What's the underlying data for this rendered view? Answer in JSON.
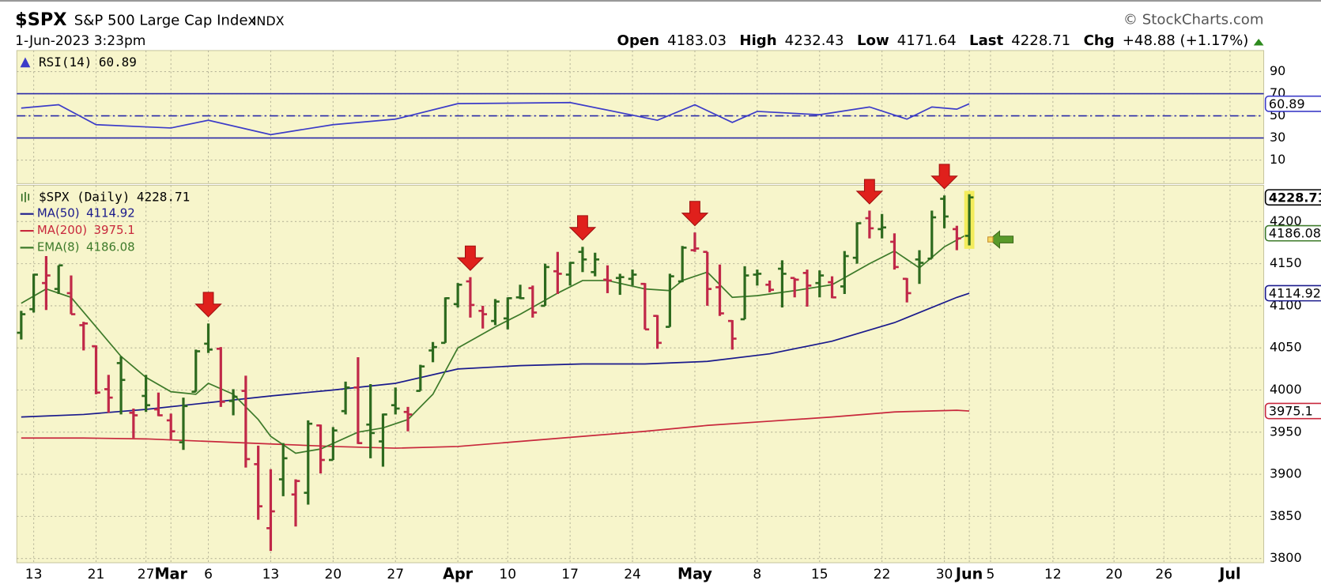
{
  "header": {
    "symbol": "$SPX",
    "name": "S&P 500 Large Cap Index",
    "exchange": "INDX",
    "date": "1-Jun-2023 3:23pm",
    "credit": "© StockCharts.com",
    "open_label": "Open",
    "high_label": "High",
    "low_label": "Low",
    "last_label": "Last",
    "chg_label": "Chg",
    "chg": "+48.88 (+1.17%)"
  },
  "chart_data": [
    {
      "type": "line",
      "background": "#f7f5cb",
      "xlim": [
        -0.35,
        99.6
      ],
      "ylim": [
        -11.3,
        109
      ],
      "yticks": [
        90,
        70,
        50,
        30,
        10
      ],
      "levels": [
        {
          "value": 70,
          "style": "solid"
        },
        {
          "value": 50,
          "style": "dashdot"
        },
        {
          "value": 30,
          "style": "solid"
        }
      ],
      "level_color": "#2a2aa8",
      "series": [
        {
          "name": "RSI(14)",
          "color": "#3c3cc8",
          "x": [
            0,
            3,
            6,
            10,
            12,
            15,
            20,
            25,
            30,
            35,
            44,
            51,
            54,
            57,
            59,
            64,
            68,
            71,
            73,
            75,
            76
          ],
          "values": [
            57,
            60,
            42,
            40,
            39,
            46,
            33,
            42,
            47,
            61,
            62,
            46,
            60,
            44,
            54,
            51,
            58,
            47,
            58,
            56,
            60.89
          ]
        }
      ]
    },
    {
      "type": "ohlc",
      "background": "#f7f5cb",
      "xlim": [
        -0.35,
        99.6
      ],
      "ylim": [
        3795,
        4243
      ],
      "yticks": [
        4200,
        4150,
        4100,
        4050,
        4000,
        3950,
        3900,
        3850,
        3800
      ],
      "xticks": [
        {
          "value": 1,
          "label": "13"
        },
        {
          "value": 6,
          "label": "21"
        },
        {
          "value": 10,
          "label": "27"
        },
        {
          "value": 12,
          "label": "Mar"
        },
        {
          "value": 15,
          "label": "6"
        },
        {
          "value": 20,
          "label": "13"
        },
        {
          "value": 25,
          "label": "20"
        },
        {
          "value": 30,
          "label": "27"
        },
        {
          "value": 35,
          "label": "Apr"
        },
        {
          "value": 39,
          "label": "10"
        },
        {
          "value": 44,
          "label": "17"
        },
        {
          "value": 49,
          "label": "24"
        },
        {
          "value": 54,
          "label": "May"
        },
        {
          "value": 59,
          "label": "8"
        },
        {
          "value": 64,
          "label": "15"
        },
        {
          "value": 69,
          "label": "22"
        },
        {
          "value": 74,
          "label": "30"
        },
        {
          "value": 76,
          "label": "Jun"
        },
        {
          "value": 77.7,
          "label": "5"
        },
        {
          "value": 82.7,
          "label": "12"
        },
        {
          "value": 87.6,
          "label": "20"
        },
        {
          "value": 91.6,
          "label": "26"
        },
        {
          "value": 96.9,
          "label": "Jul"
        }
      ],
      "up_color": "#2d6a1e",
      "down_color": "#c02848",
      "highlight_color": "#f3ec5c",
      "annotations": [
        {
          "index": 15,
          "color": "#e0201c"
        },
        {
          "index": 36,
          "color": "#e0201c"
        },
        {
          "index": 45,
          "color": "#e0201c"
        },
        {
          "index": 54,
          "color": "#e0201c"
        },
        {
          "index": 68,
          "color": "#e0201c"
        },
        {
          "index": 74,
          "color": "#e0201c"
        }
      ],
      "series": [
        {
          "name": "$SPX (Daily)",
          "color": "#000000",
          "open": [
            4068,
            4096,
            4127,
            4120,
            4115,
            4077,
            4052,
            4001,
            4032,
            3973,
            3993,
            3977,
            3964,
            3938,
            3998,
            4055,
            4049,
            3987,
            3999,
            3912,
            3836,
            3894,
            3876,
            3878,
            3958,
            3917,
            3975,
            4003,
            3959,
            3939,
            3982,
            3974,
            3999,
            4047,
            4056,
            4102,
            4129,
            4094,
            4082,
            4085,
            4110,
            4121,
            4100,
            4141,
            4137,
            4164,
            4140,
            4131,
            4133,
            4132,
            4126,
            4088,
            4075,
            4129,
            4166,
            4164,
            4122,
            4082,
            4084,
            4137,
            4125,
            4144,
            4133,
            4139,
            4127,
            4128,
            4123,
            4157,
            4204,
            4191,
            4176,
            4132,
            4155,
            4156,
            4227,
            4191,
            4183.03
          ],
          "high": [
            4094,
            4138,
            4159,
            4148,
            4136,
            4081,
            4053,
            4018,
            4040,
            3978,
            4018,
            3997,
            3972,
            3991,
            4048,
            4079,
            4051,
            4001,
            4017,
            3934,
            3906,
            3937,
            3894,
            3964,
            3959,
            3956,
            4010,
            4039,
            4007,
            3972,
            4003,
            3980,
            4030,
            4057,
            4110,
            4127,
            4134,
            4100,
            4108,
            4110,
            4125,
            4124,
            4150,
            4164,
            4152,
            4170,
            4163,
            4148,
            4138,
            4143,
            4127,
            4089,
            4138,
            4171,
            4187,
            4164,
            4149,
            4083,
            4147,
            4143,
            4130,
            4154,
            4133,
            4143,
            4142,
            4135,
            4165,
            4199,
            4213,
            4209,
            4186,
            4133,
            4166,
            4213,
            4231,
            4195,
            4232.43
          ],
          "low": [
            4060,
            4092,
            4095,
            4114,
            4090,
            4047,
            3995,
            3973,
            3971,
            3943,
            3974,
            3969,
            3940,
            3929,
            3998,
            4044,
            3980,
            3970,
            3908,
            3846,
            3809,
            3874,
            3838,
            3864,
            3901,
            3917,
            3971,
            3936,
            3919,
            3909,
            3971,
            3951,
            3999,
            4033,
            4056,
            4098,
            4086,
            4073,
            4077,
            4072,
            4108,
            4086,
            4100,
            4114,
            4124,
            4140,
            4135,
            4115,
            4113,
            4124,
            4072,
            4049,
            4075,
            4128,
            4164,
            4100,
            4088,
            4048,
            4084,
            4124,
            4116,
            4098,
            4110,
            4099,
            4110,
            4109,
            4114,
            4150,
            4180,
            4180,
            4143,
            4104,
            4126,
            4156,
            4192,
            4166,
            4171.64
          ],
          "close": [
            4090,
            4137,
            4136,
            4148,
            4090,
            4079,
            3997,
            3991,
            4012,
            3970,
            3982,
            3970,
            3951,
            3981,
            4046,
            4048,
            3986,
            3992,
            3918,
            3862,
            3856,
            3919,
            3892,
            3960,
            3917,
            3952,
            4003,
            3937,
            3949,
            3971,
            3978,
            3971,
            4028,
            4051,
            4109,
            4125,
            4101,
            4090,
            4105,
            4109,
            4109,
            4092,
            4146,
            4138,
            4151,
            4155,
            4155,
            4130,
            4134,
            4137,
            4072,
            4056,
            4135,
            4169,
            4168,
            4120,
            4091,
            4061,
            4136,
            4138,
            4119,
            4138,
            4131,
            4124,
            4136,
            4110,
            4159,
            4198,
            4192,
            4193,
            4146,
            4115,
            4151,
            4205,
            4206,
            4180,
            4228.71
          ]
        },
        {
          "name": "MA(50)",
          "color": "#1a1a8c",
          "x": [
            0,
            5,
            10,
            15,
            20,
            25,
            30,
            35,
            40,
            45,
            50,
            55,
            60,
            65,
            70,
            75,
            76
          ],
          "values": [
            3968,
            3971,
            3977,
            3985,
            3993,
            4000,
            4008,
            4025,
            4029,
            4031,
            4031,
            4034,
            4043,
            4058,
            4080,
            4110,
            4114.92
          ]
        },
        {
          "name": "MA(200)",
          "color": "#c8283c",
          "x": [
            0,
            5,
            10,
            15,
            20,
            25,
            30,
            35,
            40,
            45,
            50,
            55,
            60,
            65,
            70,
            75,
            76
          ],
          "values": [
            3943,
            3943,
            3942,
            3939,
            3936,
            3933,
            3931,
            3933,
            3939,
            3945,
            3951,
            3958,
            3963,
            3968,
            3974,
            3976,
            3975.1
          ]
        },
        {
          "name": "EMA(8)",
          "color": "#3d7a2a",
          "x": [
            0,
            2,
            4,
            6,
            8,
            10,
            12,
            14,
            15,
            17,
            19,
            20,
            22,
            24,
            27,
            29,
            31,
            33,
            35,
            38,
            40,
            43,
            45,
            47,
            50,
            52,
            53,
            55,
            57,
            59,
            62,
            65,
            68,
            70,
            72,
            74,
            76
          ],
          "values": [
            4103,
            4120,
            4110,
            4075,
            4040,
            4015,
            3998,
            3995,
            4008,
            3995,
            3965,
            3945,
            3925,
            3930,
            3950,
            3955,
            3965,
            3995,
            4050,
            4075,
            4090,
            4115,
            4130,
            4130,
            4120,
            4118,
            4130,
            4140,
            4110,
            4112,
            4118,
            4125,
            4150,
            4165,
            4145,
            4170,
            4186.08
          ]
        }
      ]
    }
  ]
}
